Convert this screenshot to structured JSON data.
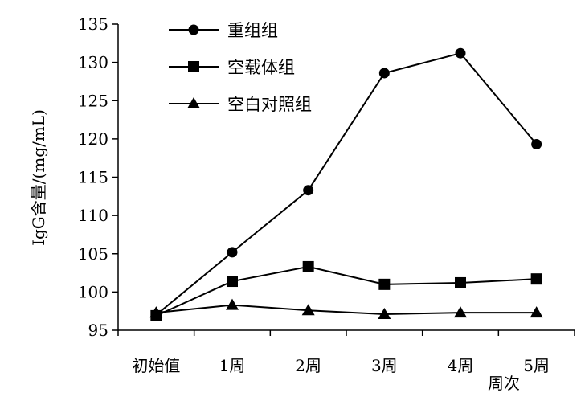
{
  "chart_data": {
    "type": "line",
    "title": "",
    "xlabel": "周次",
    "ylabel": "IgG含量/(mg/mL)",
    "categories": [
      "初始值",
      "1周",
      "2周",
      "3周",
      "4周",
      "5周"
    ],
    "ylim": [
      95,
      135
    ],
    "yticks": [
      95,
      100,
      105,
      110,
      115,
      120,
      125,
      130,
      135
    ],
    "grid": false,
    "legend_position": "top-left",
    "series": [
      {
        "name": "重组组",
        "marker": "circle",
        "values": [
          97.0,
          105.2,
          113.3,
          128.6,
          131.2,
          119.3
        ]
      },
      {
        "name": "空载体组",
        "marker": "square",
        "values": [
          96.9,
          101.4,
          103.3,
          101.0,
          101.2,
          101.7
        ]
      },
      {
        "name": "空白对照组",
        "marker": "triangle",
        "values": [
          97.3,
          98.3,
          97.6,
          97.1,
          97.3,
          97.3
        ]
      }
    ],
    "colors": {
      "line": "#000000",
      "axis": "#000000"
    }
  }
}
